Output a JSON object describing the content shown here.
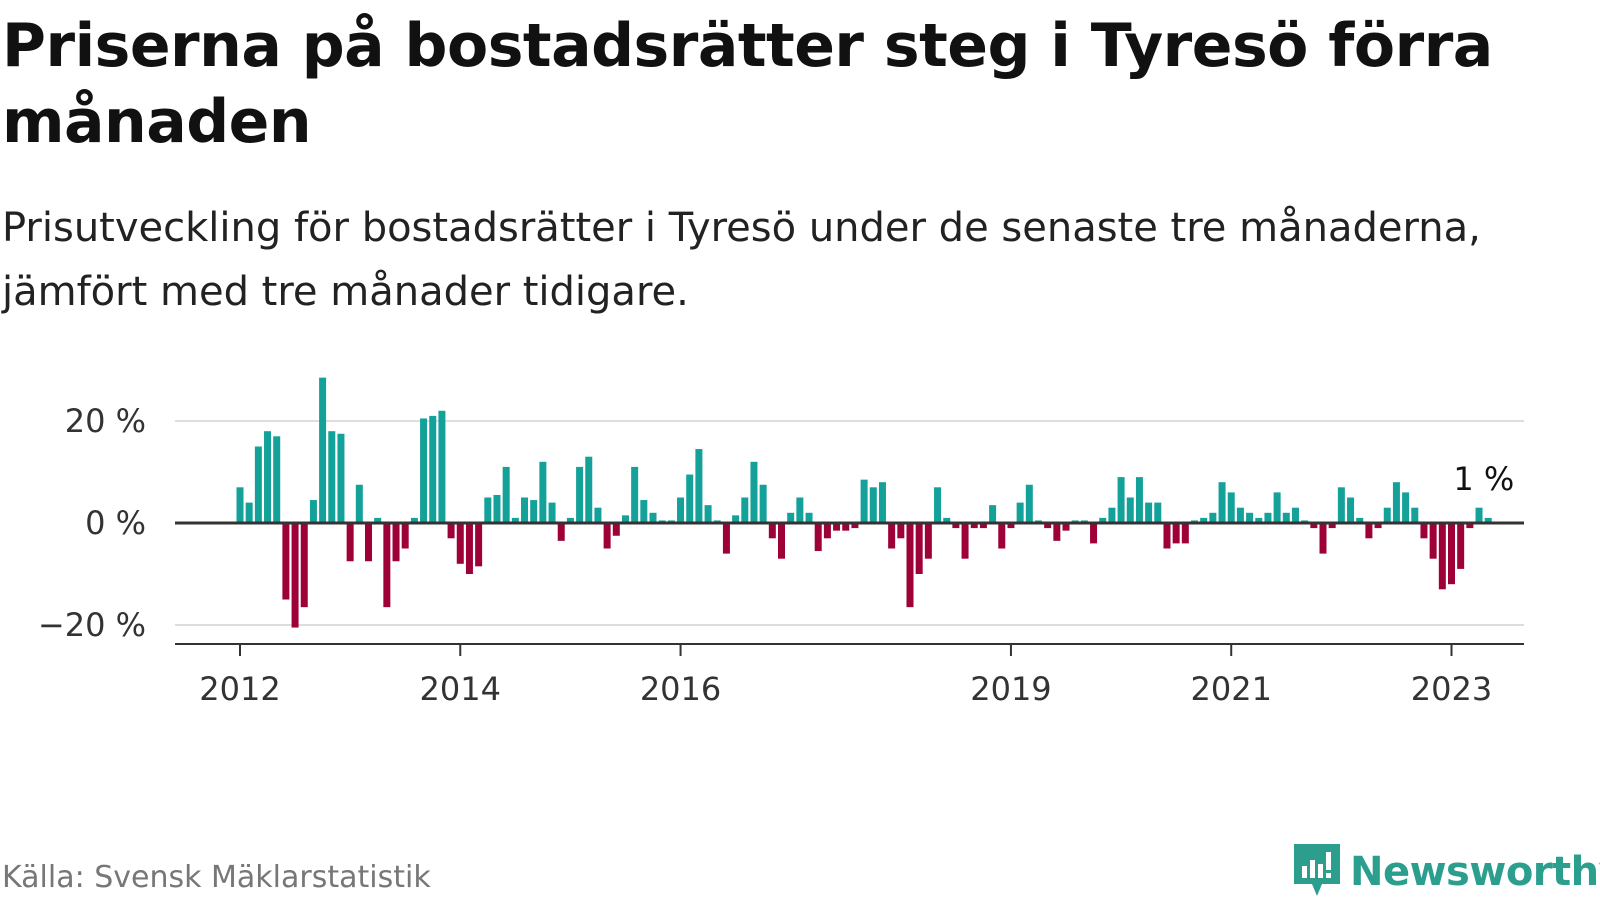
{
  "title": "Priserna på bostadsrätter steg i Tyresö förra månaden",
  "subtitle": "Prisutveckling för bostadsrätter i Tyresö under de senaste tre månaderna, jämfört med tre månader tidigare.",
  "source": "Källa: Svensk Mäklarstatistik",
  "brand": "Newsworthy",
  "icons": {
    "logo": "newsworthy-chart-icon"
  },
  "colors": {
    "positive": "#13a199",
    "negative": "#9e0038",
    "brand": "#2b9e8e"
  },
  "chart_data": {
    "type": "bar",
    "x_start": "2012-01",
    "x_ticks": [
      {
        "label": "2012",
        "date": "2012-01"
      },
      {
        "label": "2014",
        "date": "2014-01"
      },
      {
        "label": "2016",
        "date": "2016-01"
      },
      {
        "label": "2019",
        "date": "2019-01"
      },
      {
        "label": "2021",
        "date": "2021-01"
      },
      {
        "label": "2023",
        "date": "2023-01"
      }
    ],
    "y_ticks": [
      {
        "value": 20,
        "label": "20 %"
      },
      {
        "value": 0,
        "label": "0 %"
      },
      {
        "value": -20,
        "label": "−20 %"
      }
    ],
    "ylim": [
      -24,
      30
    ],
    "grid": true,
    "annotation": {
      "text": "1 %",
      "date": "2023-03",
      "value": 1
    },
    "values": [
      7,
      4,
      15,
      18,
      17,
      -15,
      -20.5,
      -16.5,
      4.5,
      28.5,
      18,
      17.5,
      -7.5,
      7.5,
      -7.5,
      1,
      -16.5,
      -7.5,
      -5,
      1,
      20.5,
      21,
      22,
      -3,
      -8,
      -10,
      -8.5,
      5,
      5.5,
      11,
      1,
      5,
      4.5,
      12,
      4,
      -3.5,
      1,
      11,
      13,
      3,
      -5,
      -2.5,
      1.5,
      11,
      4.5,
      2,
      0.5,
      0.5,
      5,
      9.5,
      14.5,
      3.5,
      0.5,
      -6,
      1.5,
      5,
      12,
      7.5,
      -3,
      -7,
      2,
      5,
      2,
      -5.5,
      -3,
      -1.5,
      -1.5,
      -1,
      8.5,
      7,
      8,
      -5,
      -3,
      -16.5,
      -10,
      -7,
      7,
      1,
      -1,
      -7,
      -1,
      -1,
      3.5,
      -5,
      -1,
      4,
      7.5,
      0.5,
      -1,
      -3.5,
      -1.5,
      0.5,
      0.5,
      -4,
      1,
      3,
      9,
      5,
      9,
      4,
      4,
      -5,
      -4,
      -4,
      0.5,
      1,
      2,
      8,
      6,
      3,
      2,
      1,
      2,
      6,
      2,
      3,
      0.5,
      -1,
      -6,
      -1,
      7,
      5,
      1,
      -3,
      -1,
      3,
      8,
      6,
      3,
      -3,
      -7,
      -13,
      -12,
      -9,
      -1,
      3,
      1
    ]
  }
}
